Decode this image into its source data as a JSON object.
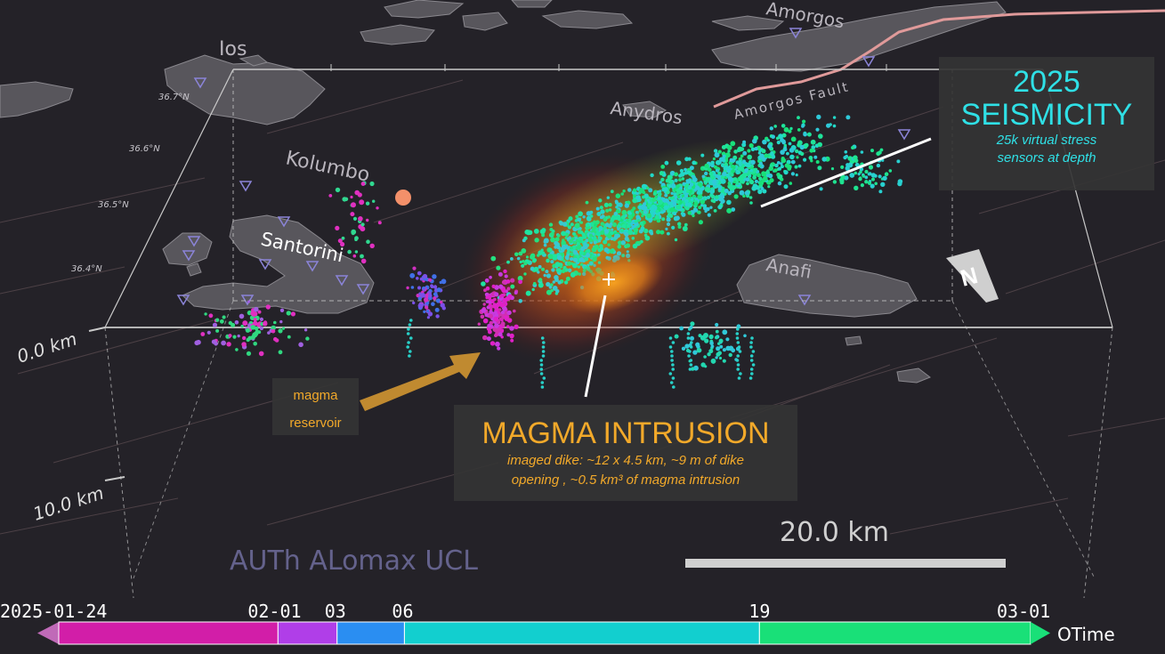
{
  "places": {
    "ios": "Ios",
    "amorgos": "Amorgos",
    "anydros": "Anydros",
    "amorgos_fault": "Amorgos Fault",
    "kolumbo": "Kolumbo",
    "santorini": "Santorini",
    "anafi": "Anafi"
  },
  "latitudes": [
    "36.7°N",
    "36.6°N",
    "36.5°N",
    "36.4°N"
  ],
  "depths": {
    "top": "0.0 km",
    "deep": "10.0 km"
  },
  "seismicity": {
    "year": "2025",
    "title": "SEISMICITY",
    "subtitle_1": "25k virtual stress",
    "subtitle_2": "sensors at depth"
  },
  "magma": {
    "title": "MAGMA INTRUSION",
    "detail_1": "imaged dike: ~12 x 4.5 km, ~9 m of  dike",
    "detail_2": "opening , ~0.5 km³ of magma intrusion"
  },
  "reservoir": {
    "line_1": "magma",
    "line_2": "reservoir"
  },
  "scale_bar": "20.0 km",
  "credit": "AUTh ALomax UCL",
  "north_label": "N",
  "timeline": {
    "labels": [
      {
        "text": "2025-01-24",
        "pos": 0.0
      },
      {
        "text": "02-01",
        "pos": 0.2256
      },
      {
        "text": "03",
        "pos": 0.2864
      },
      {
        "text": "06",
        "pos": 0.3557
      },
      {
        "text": "19",
        "pos": 0.721
      },
      {
        "text": "03-01",
        "pos": 1.0
      }
    ],
    "segments": [
      {
        "start": 0.0,
        "end": 0.2256,
        "color": "#d21ea8"
      },
      {
        "start": 0.2256,
        "end": 0.2864,
        "color": "#b03ee8"
      },
      {
        "start": 0.2864,
        "end": 0.3557,
        "color": "#2a8ef2"
      },
      {
        "start": 0.3557,
        "end": 0.721,
        "color": "#12cfcf"
      },
      {
        "start": 0.721,
        "end": 1.0,
        "color": "#19e078"
      }
    ],
    "axis_label": "OTime"
  },
  "colors": {
    "background": "#242228",
    "land": "#58565c",
    "fault": "#e09a9a",
    "seismicity_text": "#2fe0e6",
    "magma_text": "#f2a92a"
  }
}
